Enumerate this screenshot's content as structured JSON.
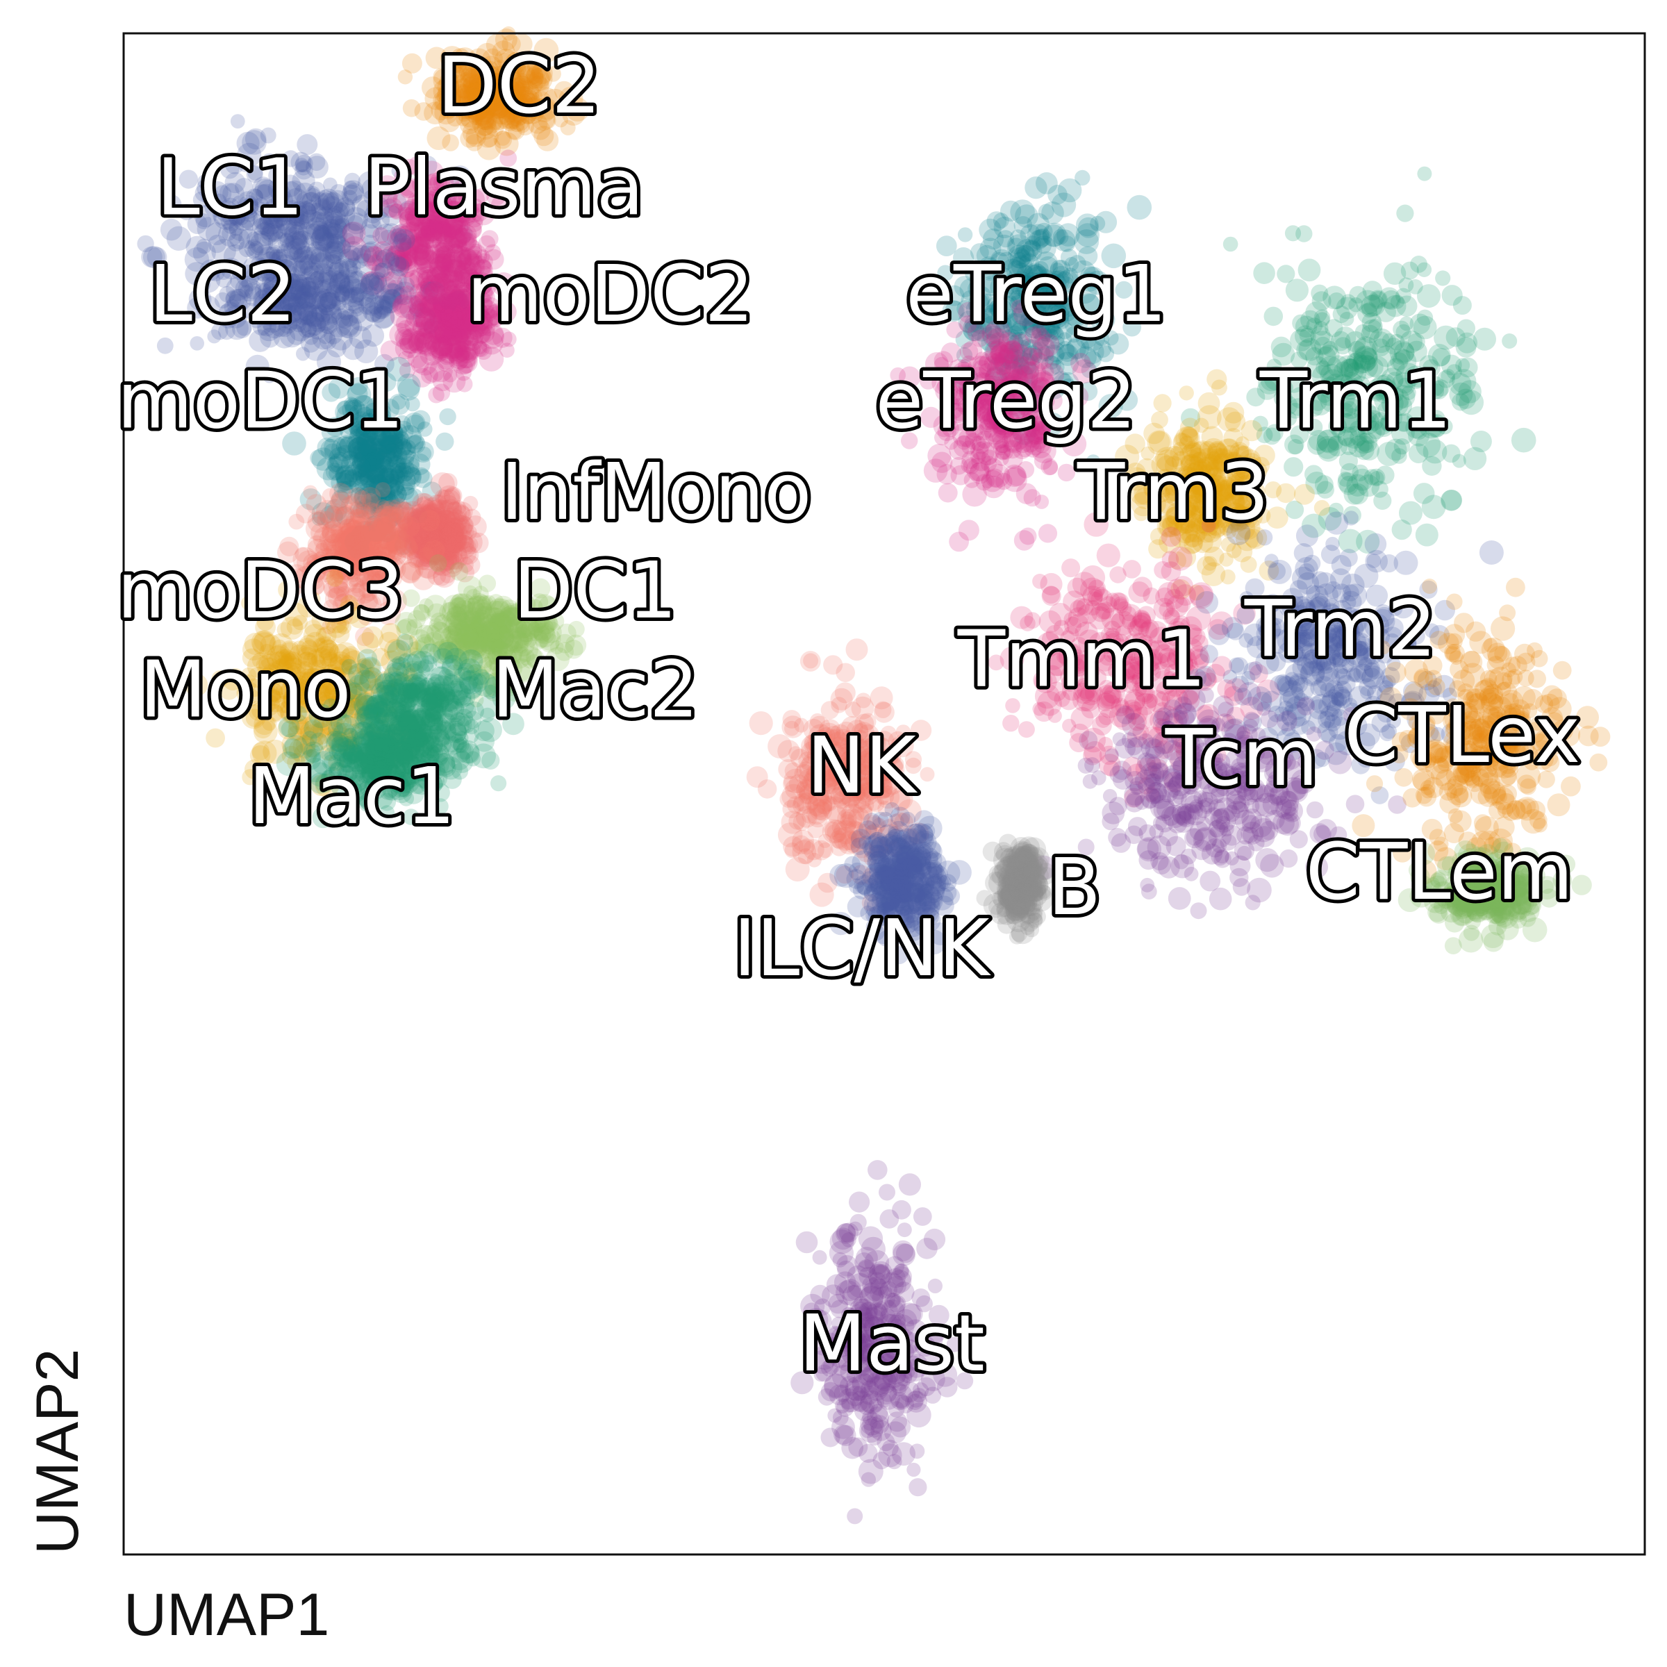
{
  "chart_data": {
    "type": "scatter",
    "xlabel": "UMAP1",
    "ylabel": "UMAP2",
    "xlim": [
      0,
      100
    ],
    "ylim": [
      0,
      100
    ],
    "grid": false,
    "legend": "none",
    "clusters": [
      {
        "label": "DC2",
        "color": "#e8880f",
        "center": [
          24.5,
          96.0
        ],
        "spread": [
          3.5,
          2.5
        ],
        "label_pos": [
          26,
          96.2
        ]
      },
      {
        "label": "LC1",
        "color": "#4b5aa6",
        "center": [
          11.0,
          87.5
        ],
        "spread": [
          6.5,
          3.5
        ],
        "label_pos": [
          7,
          89.5
        ]
      },
      {
        "label": "Plasma",
        "color": "#d62e8a",
        "center": [
          20.5,
          86.5
        ],
        "spread": [
          3.5,
          4.0
        ],
        "label_pos": [
          25,
          89.5
        ]
      },
      {
        "label": "LC2",
        "color": "#4b5aa6",
        "center": [
          12.5,
          82.5
        ],
        "spread": [
          6.0,
          3.0
        ],
        "label_pos": [
          6.5,
          82.5
        ]
      },
      {
        "label": "moDC2",
        "color": "#d62e8a",
        "center": [
          21.5,
          81.0
        ],
        "spread": [
          2.8,
          3.0
        ],
        "label_pos": [
          32,
          82.5
        ]
      },
      {
        "label": "moDC1",
        "color": "#0f7f8e",
        "center": [
          16.5,
          72.0
        ],
        "spread": [
          3.0,
          4.0
        ],
        "label_pos": [
          9,
          75.5
        ]
      },
      {
        "label": "InfMono",
        "color": "#ef6a6a",
        "center": [
          20.5,
          67.0
        ],
        "spread": [
          2.0,
          2.0
        ],
        "label_pos": [
          35,
          69.5
        ]
      },
      {
        "label": "moDC3",
        "color": "#f07868",
        "center": [
          15.5,
          66.0
        ],
        "spread": [
          3.0,
          3.0
        ],
        "label_pos": [
          9,
          63
        ]
      },
      {
        "label": "DC1",
        "color": "#8dbf5a",
        "center": [
          24.0,
          60.5
        ],
        "spread": [
          4.0,
          2.5
        ],
        "label_pos": [
          31,
          63
        ]
      },
      {
        "label": "Mono",
        "color": "#e2a60d",
        "center": [
          12.5,
          57.0
        ],
        "spread": [
          4.5,
          4.0
        ],
        "label_pos": [
          8,
          56.5
        ]
      },
      {
        "label": "Mac2",
        "color": "#1f9b72",
        "center": [
          19.5,
          55.5
        ],
        "spread": [
          4.0,
          3.5
        ],
        "label_pos": [
          31,
          56.5
        ]
      },
      {
        "label": "Mac1",
        "color": "#1f9b72",
        "center": [
          17.0,
          52.5
        ],
        "spread": [
          4.0,
          2.5
        ],
        "label_pos": [
          15,
          49.5
        ]
      },
      {
        "label": "eTreg1",
        "color": "#0f7f8e",
        "center": [
          60.0,
          82.5
        ],
        "spread": [
          4.5,
          6.0
        ],
        "label_pos": [
          60,
          82.5
        ]
      },
      {
        "label": "eTreg2",
        "color": "#d62e8a",
        "center": [
          57.5,
          75.0
        ],
        "spread": [
          3.5,
          5.0
        ],
        "label_pos": [
          58,
          75.5
        ]
      },
      {
        "label": "Trm1",
        "color": "#1f9b72",
        "center": [
          82.0,
          76.5
        ],
        "spread": [
          6.5,
          7.5
        ],
        "label_pos": [
          81,
          75.5
        ]
      },
      {
        "label": "Trm3",
        "color": "#e2a60d",
        "center": [
          71.5,
          70.0
        ],
        "spread": [
          3.5,
          4.0
        ],
        "label_pos": [
          69,
          69.5
        ]
      },
      {
        "label": "Tmm1",
        "color": "#e33b7a",
        "center": [
          66.0,
          58.5
        ],
        "spread": [
          6.0,
          6.0
        ],
        "label_pos": [
          63,
          58.5
        ]
      },
      {
        "label": "Trm2",
        "color": "#4b5aa6",
        "center": [
          79.5,
          59.5
        ],
        "spread": [
          6.0,
          6.0
        ],
        "label_pos": [
          80,
          60.5
        ]
      },
      {
        "label": "Tcm",
        "color": "#7a3e96",
        "center": [
          71.5,
          50.0
        ],
        "spread": [
          6.5,
          5.5
        ],
        "label_pos": [
          73.5,
          52
        ]
      },
      {
        "label": "CTLex",
        "color": "#e8880f",
        "center": [
          89.5,
          53.5
        ],
        "spread": [
          4.5,
          6.5
        ],
        "label_pos": [
          88,
          53.5
        ]
      },
      {
        "label": "CTLem",
        "color": "#7ab85a",
        "center": [
          89.5,
          43.5
        ],
        "spread": [
          3.0,
          2.0
        ],
        "label_pos": [
          86.5,
          44.5
        ]
      },
      {
        "label": "NK",
        "color": "#f07868",
        "center": [
          47.5,
          51.0
        ],
        "spread": [
          3.5,
          5.0
        ],
        "label_pos": [
          48.5,
          51.5
        ]
      },
      {
        "label": "ILC/NK",
        "color": "#4b5aa6",
        "center": [
          51.0,
          44.5
        ],
        "spread": [
          2.5,
          3.0
        ],
        "label_pos": [
          48.5,
          39.5
        ]
      },
      {
        "label": "B",
        "color": "#8c8c8c",
        "center": [
          59.0,
          44.0
        ],
        "spread": [
          1.2,
          2.0
        ],
        "label_pos": [
          62.5,
          43.5
        ]
      },
      {
        "label": "Mast",
        "color": "#7a3e96",
        "center": [
          49.5,
          14.0
        ],
        "spread": [
          3.5,
          7.0
        ],
        "label_pos": [
          50.5,
          13.5
        ]
      }
    ]
  }
}
